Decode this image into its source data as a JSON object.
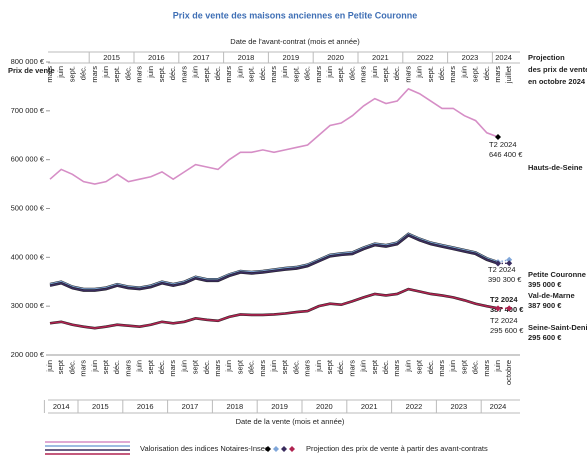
{
  "chart_data": {
    "type": "line",
    "title": "Prix de vente des maisons anciennes en Petite Couronne",
    "top_axis_label": "Date de l'avant-contrat (mois et année)",
    "x_label": "Date de la vente (mois et année)",
    "y_label": "Prix de vente",
    "categories": [
      "juin",
      "sept",
      "déc.",
      "mars",
      "juin",
      "sept",
      "déc.",
      "mars",
      "juin",
      "sept",
      "déc.",
      "mars",
      "juin",
      "sept",
      "déc.",
      "mars",
      "juin",
      "sept",
      "déc.",
      "mars",
      "juin",
      "sept",
      "déc.",
      "mars",
      "juin",
      "sept",
      "déc.",
      "mars",
      "juin",
      "sept",
      "déc.",
      "mars",
      "juin",
      "sept",
      "déc.",
      "mars",
      "juin",
      "sept",
      "déc.",
      "mars",
      "juin",
      "octobre"
    ],
    "years": [
      "2014",
      "2015",
      "2016",
      "2017",
      "2018",
      "2019",
      "2020",
      "2021",
      "2022",
      "2023",
      "2024"
    ],
    "top_categories": [
      "mars",
      "juin",
      "sept.",
      "déc.",
      "mars",
      "juin",
      "sept.",
      "déc.",
      "mars",
      "juin",
      "sept.",
      "déc.",
      "mars",
      "juin",
      "sept.",
      "déc.",
      "mars",
      "juin",
      "sept.",
      "déc.",
      "mars",
      "juin",
      "sept.",
      "déc.",
      "mars",
      "juin",
      "sept.",
      "déc.",
      "mars",
      "juin",
      "sept.",
      "déc.",
      "mars",
      "juin",
      "sept.",
      "déc.",
      "mars",
      "juin",
      "sept.",
      "déc.",
      "mars",
      "juillet"
    ],
    "top_years": [
      "2015",
      "2016",
      "2017",
      "2018",
      "2019",
      "2020",
      "2021",
      "2022",
      "2023",
      "2024"
    ],
    "ylim": [
      200000,
      800000
    ],
    "yticks": [
      {
        "value": 200000,
        "label": "200 000 €"
      },
      {
        "value": 300000,
        "label": "300 000 €"
      },
      {
        "value": 400000,
        "label": "400 000 €"
      },
      {
        "value": 500000,
        "label": "500 000 €"
      },
      {
        "value": 600000,
        "label": "600 000 €"
      },
      {
        "value": 700000,
        "label": "700 000 €"
      },
      {
        "value": 800000,
        "label": "800 000 €"
      }
    ],
    "period_label": "T2 2024",
    "projection_title": [
      "Projection",
      "des prix de vente",
      "en octobre 2024 :"
    ],
    "legend": {
      "line": "Valorisation des indices Notaires-Insee",
      "projection": "Projection des prix de vente à partir des avant-contrats"
    },
    "series": [
      {
        "name": "Hauts-de-Seine",
        "color": "#d68ec6",
        "values": [
          560000,
          580000,
          570000,
          555000,
          550000,
          555000,
          570000,
          555000,
          560000,
          565000,
          575000,
          560000,
          575000,
          590000,
          585000,
          580000,
          600000,
          615000,
          615000,
          620000,
          615000,
          620000,
          625000,
          630000,
          650000,
          670000,
          675000,
          690000,
          710000,
          725000,
          715000,
          720000,
          745000,
          735000,
          720000,
          705000,
          705000,
          690000,
          680000,
          655000,
          646400,
          null
        ],
        "value_labels": [
          null,
          null,
          null,
          null,
          null,
          null,
          null,
          null,
          null,
          null,
          null,
          null,
          null,
          null,
          null,
          null,
          null,
          null,
          null,
          null,
          null,
          null,
          null,
          null,
          null,
          null,
          null,
          null,
          null,
          null,
          null,
          null,
          null,
          null,
          null,
          null,
          null,
          null,
          null,
          null,
          "646 400 €",
          null
        ]
      },
      {
        "name": "Petite Couronne",
        "color": "#7fa6d9",
        "values": [
          345000,
          350000,
          340000,
          335000,
          335000,
          338000,
          345000,
          340000,
          338000,
          342000,
          350000,
          345000,
          350000,
          360000,
          355000,
          355000,
          365000,
          372000,
          370000,
          372000,
          375000,
          378000,
          380000,
          385000,
          395000,
          405000,
          408000,
          410000,
          420000,
          428000,
          425000,
          430000,
          448000,
          438000,
          430000,
          425000,
          420000,
          415000,
          410000,
          398000,
          390300,
          395000
        ],
        "value_labels": [
          null,
          null,
          null,
          null,
          null,
          null,
          null,
          null,
          null,
          null,
          null,
          null,
          null,
          null,
          null,
          null,
          null,
          null,
          null,
          null,
          null,
          null,
          null,
          null,
          null,
          null,
          null,
          null,
          null,
          null,
          null,
          null,
          null,
          null,
          null,
          null,
          null,
          null,
          null,
          null,
          "390 300 €",
          "395 000 €"
        ]
      },
      {
        "name": "Val-de-Marne",
        "color": "#3a2c5e",
        "values": [
          342000,
          347000,
          337000,
          332000,
          332000,
          335000,
          342000,
          337000,
          335000,
          339000,
          347000,
          342000,
          347000,
          357000,
          352000,
          352000,
          362000,
          369000,
          367000,
          369000,
          372000,
          375000,
          377000,
          382000,
          392000,
          402000,
          405000,
          407000,
          417000,
          425000,
          422000,
          427000,
          445000,
          435000,
          427000,
          422000,
          417000,
          412000,
          407000,
          395000,
          387400,
          387900
        ],
        "value_labels": [
          null,
          null,
          null,
          null,
          null,
          null,
          null,
          null,
          null,
          null,
          null,
          null,
          null,
          null,
          null,
          null,
          null,
          null,
          null,
          null,
          null,
          null,
          null,
          null,
          null,
          null,
          null,
          null,
          null,
          null,
          null,
          null,
          null,
          null,
          null,
          null,
          null,
          null,
          null,
          null,
          "387 400 €",
          "387 900 €"
        ]
      },
      {
        "name": "Seine-Saint-Denis",
        "color": "#b02350",
        "values": [
          265000,
          268000,
          262000,
          258000,
          255000,
          258000,
          262000,
          260000,
          258000,
          262000,
          268000,
          265000,
          268000,
          275000,
          272000,
          270000,
          278000,
          283000,
          282000,
          282000,
          283000,
          285000,
          288000,
          290000,
          300000,
          305000,
          303000,
          310000,
          318000,
          325000,
          322000,
          325000,
          335000,
          330000,
          325000,
          322000,
          318000,
          312000,
          305000,
          300000,
          295600,
          295600
        ],
        "value_labels": [
          null,
          null,
          null,
          null,
          null,
          null,
          null,
          null,
          null,
          null,
          null,
          null,
          null,
          null,
          null,
          null,
          null,
          null,
          null,
          null,
          null,
          null,
          null,
          null,
          null,
          null,
          null,
          null,
          null,
          null,
          null,
          null,
          null,
          null,
          null,
          null,
          null,
          null,
          null,
          null,
          "295 600 €",
          "295 600 €"
        ]
      }
    ]
  }
}
